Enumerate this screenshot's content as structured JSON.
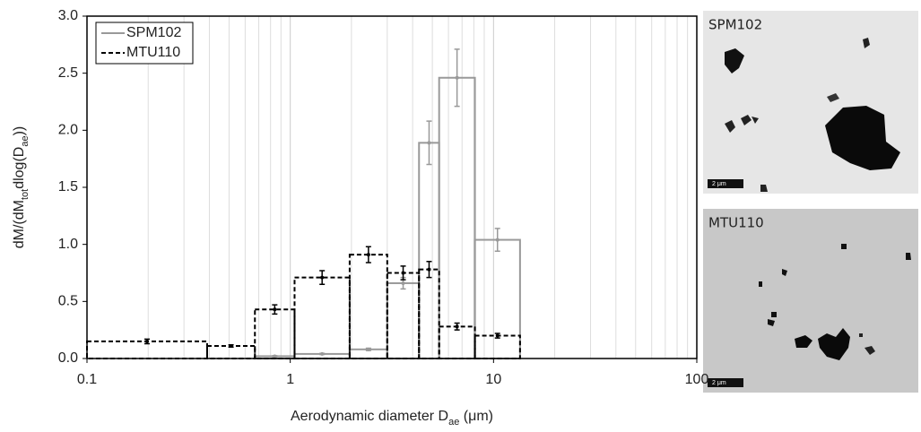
{
  "chart_data": {
    "type": "histogram",
    "xlabel": [
      {
        "text": "Aerodynamic diameter D"
      },
      {
        "text": "ae",
        "sub": true
      },
      {
        "text": " (μm)"
      }
    ],
    "ylabel": [
      {
        "text": "dM/(dM"
      },
      {
        "text": "tot",
        "sub": true
      },
      {
        "text": "dlog(D"
      },
      {
        "text": "ae",
        "sub": true
      },
      {
        "text": "))"
      }
    ],
    "xscale": "log",
    "xlim": [
      0.1,
      100
    ],
    "xticks": [
      0.1,
      1,
      10,
      100
    ],
    "xminorticks": [
      0.2,
      0.3,
      0.4,
      0.5,
      0.6,
      0.7,
      0.8,
      0.9,
      2,
      3,
      4,
      5,
      6,
      7,
      8,
      9,
      20,
      30,
      40,
      50,
      60,
      70,
      80,
      90
    ],
    "ylim": [
      0,
      3
    ],
    "yticks": [
      {
        "value": 0,
        "label": "0.0"
      },
      {
        "value": 0.5,
        "label": "0.5"
      },
      {
        "value": 1,
        "label": "1.0"
      },
      {
        "value": 1.5,
        "label": "1.5"
      },
      {
        "value": 2,
        "label": "2.0"
      },
      {
        "value": 2.5,
        "label": "2.5"
      },
      {
        "value": 3,
        "label": "3.0"
      }
    ],
    "grid": true,
    "legend": "upper left",
    "bins": [
      0.1,
      0.39,
      0.67,
      1.05,
      1.96,
      3.0,
      4.3,
      5.4,
      8.1,
      13.5
    ],
    "series": [
      {
        "name": "SPM102",
        "color": "#999999",
        "dashed": false,
        "values": [
          0,
          0,
          0.02,
          0.04,
          0.08,
          0.66,
          1.89,
          2.46,
          1.04
        ],
        "errors": [
          0,
          0,
          0.005,
          0.005,
          0.01,
          0.05,
          0.19,
          0.25,
          0.1
        ]
      },
      {
        "name": "MTU110",
        "color": "#000000",
        "dashed": true,
        "values": [
          0.15,
          0.11,
          0.43,
          0.71,
          0.91,
          0.75,
          0.78,
          0.28,
          0.2
        ],
        "errors": [
          0.02,
          0.01,
          0.04,
          0.06,
          0.07,
          0.06,
          0.07,
          0.03,
          0.02
        ]
      }
    ]
  },
  "images": [
    {
      "label": "SPM102",
      "scale_bar": "2 μm"
    },
    {
      "label": "MTU110",
      "scale_bar": "2 μm"
    }
  ]
}
